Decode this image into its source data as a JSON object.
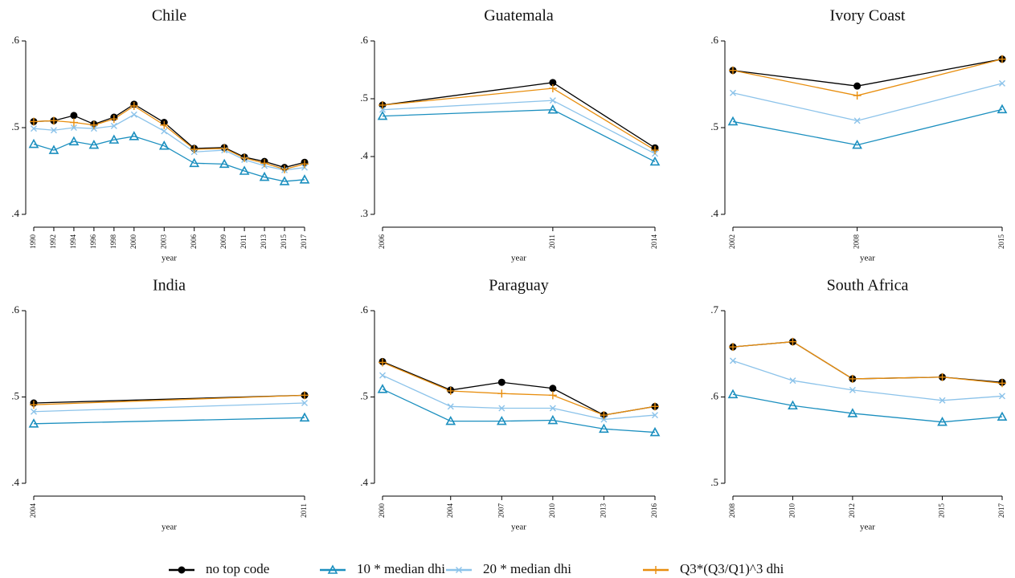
{
  "chart_data": [
    {
      "type": "line",
      "title": "Chile",
      "xlabel": "year",
      "x": [
        1990,
        1992,
        1994,
        1996,
        1998,
        2000,
        2003,
        2006,
        2009,
        2011,
        2013,
        2015,
        2017
      ],
      "xlim": [
        1990,
        2017
      ],
      "xticks": [
        1990,
        1992,
        1994,
        1996,
        1998,
        2000,
        2003,
        2006,
        2009,
        2011,
        2013,
        2015,
        2017
      ],
      "ylim": [
        0.4,
        0.6
      ],
      "yticks": [
        {
          "value": 0.4,
          "label": ".4"
        },
        {
          "value": 0.5,
          "label": ".5"
        },
        {
          "value": 0.6,
          "label": ".6"
        }
      ],
      "series": [
        {
          "values": [
            0.507,
            0.508,
            0.514,
            0.504,
            0.512,
            0.527,
            0.506,
            0.476,
            0.477,
            0.466,
            0.461,
            0.454,
            0.46
          ]
        },
        {
          "values": [
            0.481,
            0.474,
            0.484,
            0.48,
            0.486,
            0.49,
            0.479,
            0.459,
            0.458,
            0.45,
            0.443,
            0.438,
            0.44
          ]
        },
        {
          "values": [
            0.499,
            0.497,
            0.5,
            0.499,
            0.502,
            0.515,
            0.496,
            0.472,
            0.474,
            0.463,
            0.456,
            0.451,
            0.454
          ]
        },
        {
          "values": [
            0.507,
            0.508,
            0.506,
            0.503,
            0.51,
            0.525,
            0.503,
            0.475,
            0.476,
            0.465,
            0.459,
            0.452,
            0.458
          ]
        }
      ]
    },
    {
      "type": "line",
      "title": "Guatemala",
      "xlabel": "year",
      "x": [
        2006,
        2011,
        2014
      ],
      "xlim": [
        2006,
        2014
      ],
      "xticks": [
        2006,
        2011,
        2014
      ],
      "ylim": [
        0.3,
        0.6
      ],
      "yticks": [
        {
          "value": 0.3,
          "label": ".3"
        },
        {
          "value": 0.4,
          "label": ".4"
        },
        {
          "value": 0.5,
          "label": ".5"
        },
        {
          "value": 0.6,
          "label": ".6"
        }
      ],
      "series": [
        {
          "values": [
            0.489,
            0.528,
            0.415
          ]
        },
        {
          "values": [
            0.47,
            0.481,
            0.391
          ]
        },
        {
          "values": [
            0.481,
            0.497,
            0.405
          ]
        },
        {
          "values": [
            0.489,
            0.518,
            0.411
          ]
        }
      ]
    },
    {
      "type": "line",
      "title": "Ivory Coast",
      "xlabel": "year",
      "x": [
        2002,
        2008,
        2015
      ],
      "xlim": [
        2002,
        2015
      ],
      "xticks": [
        2002,
        2008,
        2015
      ],
      "ylim": [
        0.4,
        0.6
      ],
      "yticks": [
        {
          "value": 0.4,
          "label": ".4"
        },
        {
          "value": 0.5,
          "label": ".5"
        },
        {
          "value": 0.6,
          "label": ".6"
        }
      ],
      "series": [
        {
          "values": [
            0.566,
            0.548,
            0.579
          ]
        },
        {
          "values": [
            0.507,
            0.48,
            0.521
          ]
        },
        {
          "values": [
            0.54,
            0.508,
            0.551
          ]
        },
        {
          "values": [
            0.566,
            0.537,
            0.579
          ]
        }
      ]
    },
    {
      "type": "line",
      "title": "India",
      "xlabel": "year",
      "x": [
        2004,
        2011
      ],
      "xlim": [
        2004,
        2011
      ],
      "xticks": [
        2004,
        2011
      ],
      "ylim": [
        0.4,
        0.6
      ],
      "yticks": [
        {
          "value": 0.4,
          "label": ".4"
        },
        {
          "value": 0.5,
          "label": ".5"
        },
        {
          "value": 0.6,
          "label": ".6"
        }
      ],
      "series": [
        {
          "values": [
            0.493,
            0.502
          ]
        },
        {
          "values": [
            0.469,
            0.476
          ]
        },
        {
          "values": [
            0.483,
            0.493
          ]
        },
        {
          "values": [
            0.491,
            0.502
          ]
        }
      ]
    },
    {
      "type": "line",
      "title": "Paraguay",
      "xlabel": "year",
      "x": [
        2000,
        2004,
        2007,
        2010,
        2013,
        2016
      ],
      "xlim": [
        2000,
        2016
      ],
      "xticks": [
        2000,
        2004,
        2007,
        2010,
        2013,
        2016
      ],
      "ylim": [
        0.4,
        0.6
      ],
      "yticks": [
        {
          "value": 0.4,
          "label": ".4"
        },
        {
          "value": 0.5,
          "label": ".5"
        },
        {
          "value": 0.6,
          "label": ".6"
        }
      ],
      "series": [
        {
          "values": [
            0.541,
            0.508,
            0.517,
            0.51,
            0.479,
            0.489
          ]
        },
        {
          "values": [
            0.509,
            0.472,
            0.472,
            0.473,
            0.463,
            0.459
          ]
        },
        {
          "values": [
            0.525,
            0.489,
            0.487,
            0.487,
            0.474,
            0.479
          ]
        },
        {
          "values": [
            0.54,
            0.507,
            0.504,
            0.502,
            0.479,
            0.489
          ]
        }
      ]
    },
    {
      "type": "line",
      "title": "South Africa",
      "xlabel": "year",
      "x": [
        2008,
        2010,
        2012,
        2015,
        2017
      ],
      "xlim": [
        2008,
        2017
      ],
      "xticks": [
        2008,
        2010,
        2012,
        2015,
        2017
      ],
      "ylim": [
        0.5,
        0.7
      ],
      "yticks": [
        {
          "value": 0.5,
          "label": ".5"
        },
        {
          "value": 0.6,
          "label": ".6"
        },
        {
          "value": 0.7,
          "label": ".7"
        }
      ],
      "series": [
        {
          "values": [
            0.658,
            0.664,
            0.621,
            0.623,
            0.617
          ]
        },
        {
          "values": [
            0.603,
            0.59,
            0.581,
            0.571,
            0.577
          ]
        },
        {
          "values": [
            0.642,
            0.619,
            0.608,
            0.596,
            0.601
          ]
        },
        {
          "values": [
            0.658,
            0.664,
            0.621,
            0.623,
            0.616
          ]
        }
      ]
    }
  ],
  "legend": [
    {
      "name": "no top code",
      "color": "#000000",
      "marker": "circle"
    },
    {
      "name": "10 * median dhi",
      "color": "#1b8fbf",
      "marker": "triangle"
    },
    {
      "name": "20 * median dhi",
      "color": "#8cc3ea",
      "marker": "x"
    },
    {
      "name": "Q3*(Q3/Q1)^3 dhi",
      "color": "#e88e0e",
      "marker": "plus"
    }
  ]
}
